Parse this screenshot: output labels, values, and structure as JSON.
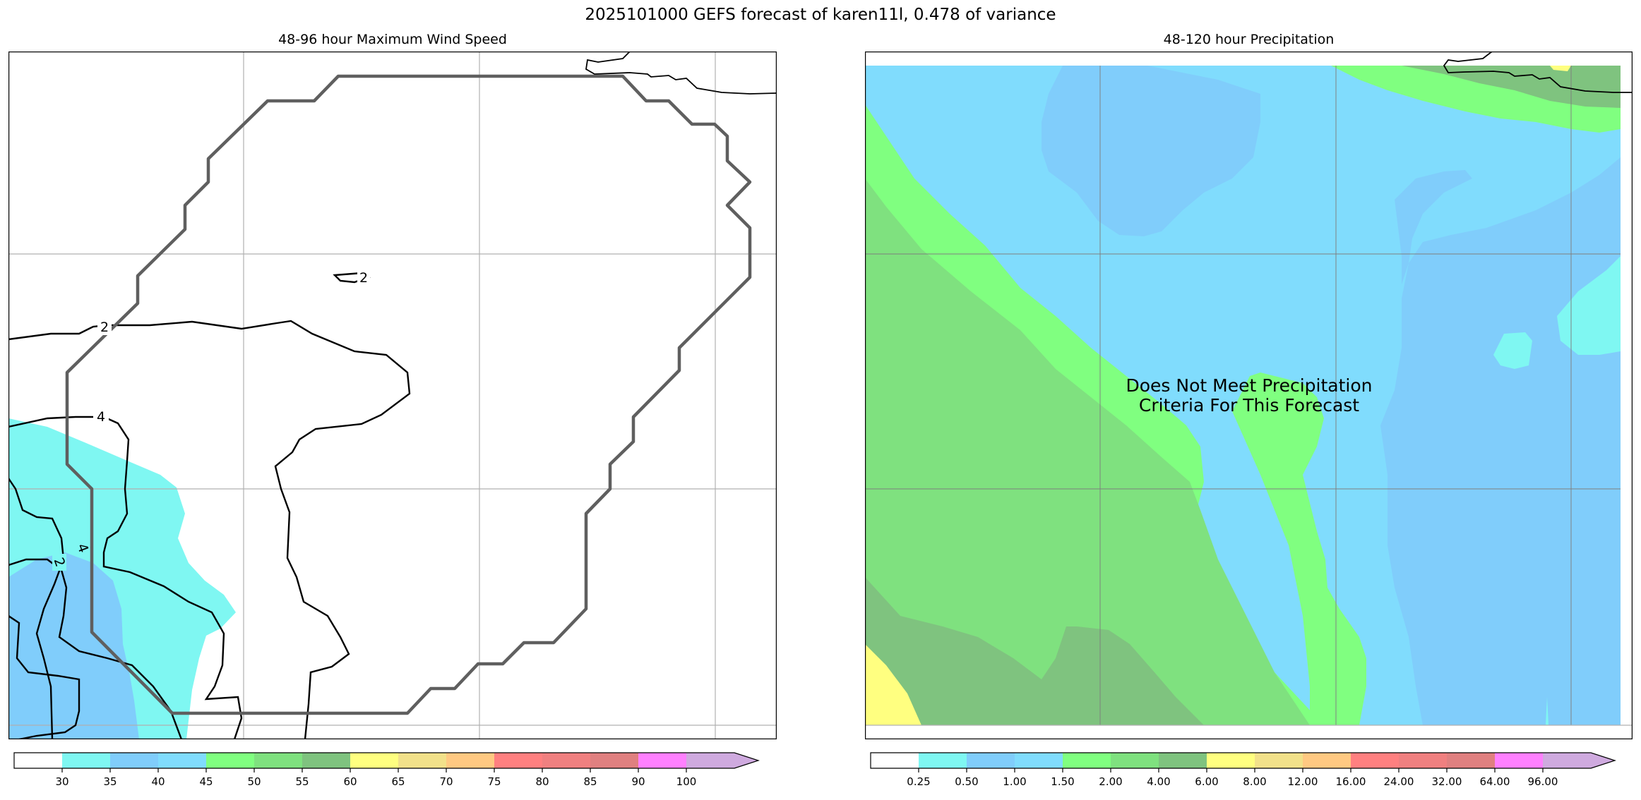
{
  "title": "2025101000 GEFS forecast of karen11l, 0.478 of variance",
  "wind_panel": {
    "title": "48-96 hour Maximum Wind Speed",
    "contour_labels": [
      "2",
      "2",
      "4",
      "4",
      "2"
    ],
    "colorbar": {
      "colors": [
        "#ffffff",
        "#7ff7f2",
        "#80cdfb",
        "#80dcfd",
        "#80ff80",
        "#7fe17f",
        "#7fc37f",
        "#ffff80",
        "#f2e18a",
        "#ffc982",
        "#ff8080",
        "#f08080",
        "#e08080",
        "#ff80ff",
        "#cfaadf"
      ],
      "ticks": [
        "30",
        "35",
        "40",
        "45",
        "50",
        "55",
        "60",
        "65",
        "70",
        "75",
        "80",
        "85",
        "90",
        "100"
      ]
    }
  },
  "precip_panel": {
    "title": "48-120 hour Precipitation",
    "message_line1": "Does Not Meet Precipitation",
    "message_line2": "Criteria For This Forecast",
    "colorbar": {
      "colors": [
        "#ffffff",
        "#7ff7f2",
        "#80cdfb",
        "#80dcfd",
        "#80ff80",
        "#7fe17f",
        "#7fc37f",
        "#ffff80",
        "#f2e18a",
        "#ffc982",
        "#ff8080",
        "#f08080",
        "#e08080",
        "#ff80ff",
        "#cfaadf"
      ],
      "ticks": [
        "0.25",
        "0.50",
        "1.00",
        "1.50",
        "2.00",
        "4.00",
        "6.00",
        "8.00",
        "12.00",
        "16.00",
        "24.00",
        "32.00",
        "64.00",
        "96.00"
      ]
    }
  }
}
